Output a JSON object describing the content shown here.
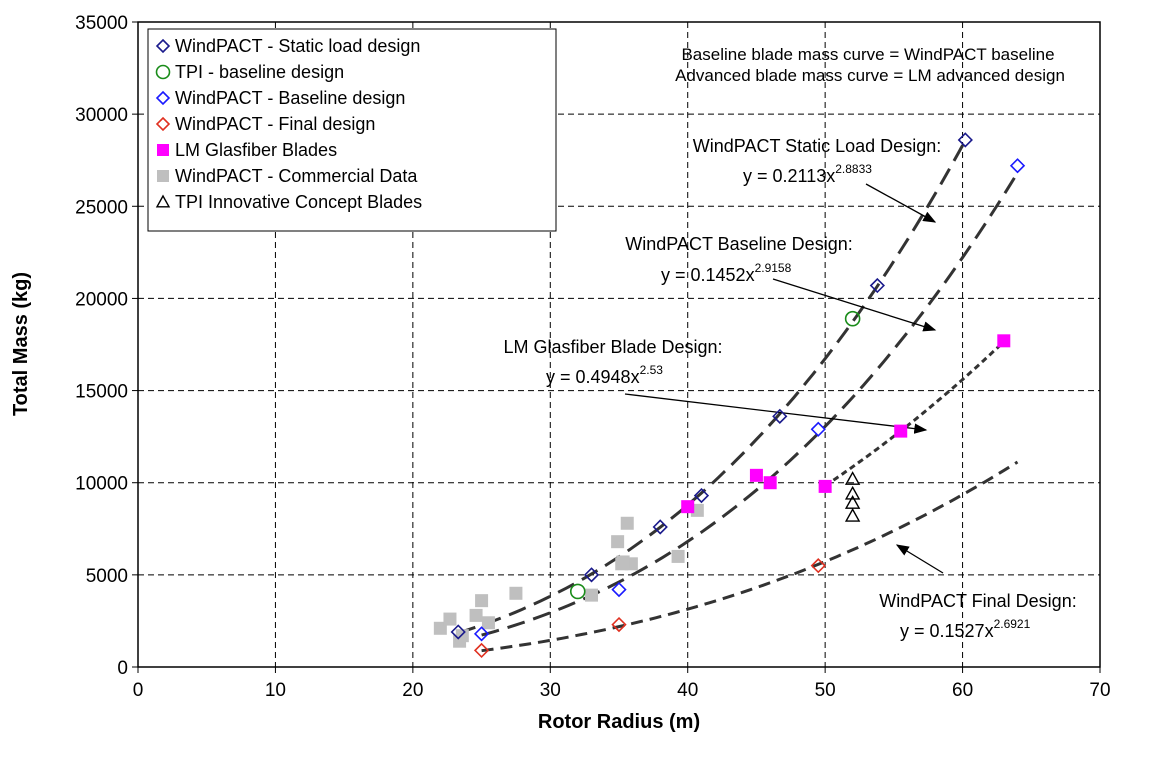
{
  "chart_data": {
    "type": "scatter",
    "xlabel": "Rotor Radius (m)",
    "ylabel": "Total Mass (kg)",
    "xlim": [
      0,
      70
    ],
    "ylim": [
      0,
      35000
    ],
    "x_ticks": [
      0,
      10,
      20,
      30,
      40,
      50,
      60,
      70
    ],
    "y_ticks": [
      0,
      5000,
      10000,
      15000,
      20000,
      25000,
      30000,
      35000
    ],
    "grid": true,
    "legend_position": "top-left",
    "series": [
      {
        "name": "WindPACT - Static load design",
        "marker": "diamond-open",
        "color": "#1a1a8c",
        "points": [
          [
            23.3,
            1900
          ],
          [
            33,
            5000
          ],
          [
            38,
            7600
          ],
          [
            41,
            9300
          ],
          [
            46.7,
            13600
          ],
          [
            53.8,
            20700
          ],
          [
            60.2,
            28600
          ]
        ]
      },
      {
        "name": "TPI - baseline design",
        "marker": "circle-open",
        "color": "#1a8c1a",
        "points": [
          [
            32,
            4100
          ],
          [
            52,
            18900
          ]
        ]
      },
      {
        "name": "WindPACT - Baseline design",
        "marker": "diamond-open",
        "color": "#1a1aff",
        "points": [
          [
            25,
            1800
          ],
          [
            35,
            4200
          ],
          [
            49.5,
            12900
          ],
          [
            64,
            27200
          ]
        ]
      },
      {
        "name": "WindPACT - Final design",
        "marker": "diamond-open",
        "color": "#e03020",
        "points": [
          [
            25,
            900
          ],
          [
            35,
            2300
          ],
          [
            49.5,
            5500
          ]
        ]
      },
      {
        "name": "LM Glasfiber Blades",
        "marker": "square-filled",
        "color": "#ff00ff",
        "points": [
          [
            40,
            8700
          ],
          [
            45,
            10400
          ],
          [
            46,
            10000
          ],
          [
            50,
            9800
          ],
          [
            55.5,
            12800
          ],
          [
            63,
            17700
          ]
        ]
      },
      {
        "name": "WindPACT - Commercial Data",
        "marker": "square-filled",
        "color": "#bfbfbf",
        "points": [
          [
            22,
            2100
          ],
          [
            22.7,
            2600
          ],
          [
            23.4,
            1400
          ],
          [
            23.6,
            1700
          ],
          [
            24.6,
            2800
          ],
          [
            25,
            3600
          ],
          [
            25.5,
            2400
          ],
          [
            27.5,
            4000
          ],
          [
            33,
            3900
          ],
          [
            34.9,
            6800
          ],
          [
            35.2,
            5600
          ],
          [
            35.6,
            7800
          ],
          [
            35.9,
            5600
          ],
          [
            39.3,
            6000
          ],
          [
            40.7,
            8500
          ],
          [
            35.3,
            5700
          ]
        ]
      },
      {
        "name": "TPI Innovative Concept Blades",
        "marker": "triangle-open",
        "color": "#000000",
        "points": [
          [
            52,
            8200
          ],
          [
            52,
            8900
          ],
          [
            52,
            9400
          ],
          [
            52,
            10200
          ]
        ]
      }
    ],
    "trendlines": [
      {
        "label": "WindPACT Static Load Design:",
        "equation": "y = 0.2113x",
        "exponent_text": "2.8833",
        "a": 0.2113,
        "b": 2.8833,
        "x_range": [
          23.3,
          60.2
        ],
        "dash": "long"
      },
      {
        "label": "WindPACT Baseline Design:",
        "equation": "y = 0.1452x",
        "exponent_text": "2.9158",
        "a": 0.1452,
        "b": 2.9158,
        "x_range": [
          25,
          64
        ],
        "dash": "long"
      },
      {
        "label": "LM Glasfiber Blade Design:",
        "equation": "y = 0.4948x",
        "exponent_text": "2.53",
        "a": 0.4948,
        "b": 2.53,
        "x_range": [
          50,
          63
        ],
        "dash": "short"
      },
      {
        "label": "WindPACT Final Design:",
        "equation": "y = 0.1527x",
        "exponent_text": "2.6921",
        "a": 0.1527,
        "b": 2.6921,
        "x_range": [
          25,
          64
        ],
        "dash": "medium"
      }
    ],
    "annotations": [
      "Baseline blade mass curve = WindPACT baseline",
      "Advanced blade mass curve = LM advanced design"
    ]
  }
}
